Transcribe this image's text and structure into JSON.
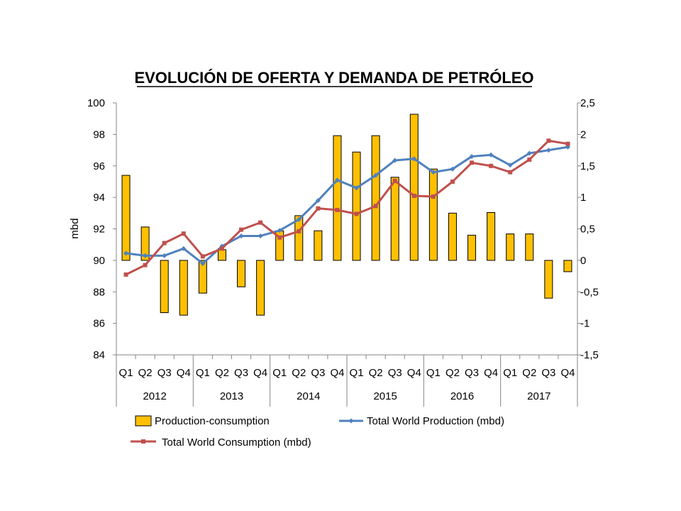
{
  "chart_data": {
    "type": "bar+line",
    "title": "EVOLUCIÓN DE OFERTA Y DEMANDA DE PETRÓLEO",
    "ylabel_left": "mbd",
    "ylim_left": [
      84,
      100
    ],
    "yticks_left": [
      "84",
      "86",
      "88",
      "90",
      "92",
      "94",
      "96",
      "98",
      "100"
    ],
    "ylim_right": [
      -1.5,
      2.5
    ],
    "yticks_right": [
      "-1,5",
      "-1",
      "-0,5",
      "0",
      "0,5",
      "1",
      "1,5",
      "2",
      "2,5"
    ],
    "quarters": [
      "Q1",
      "Q2",
      "Q3",
      "Q4",
      "Q1",
      "Q2",
      "Q3",
      "Q4",
      "Q1",
      "Q2",
      "Q3",
      "Q4",
      "Q1",
      "Q2",
      "Q3",
      "Q4",
      "Q1",
      "Q2",
      "Q3",
      "Q4",
      "Q1",
      "Q2",
      "Q3",
      "Q4"
    ],
    "years": [
      "2012",
      "2013",
      "2014",
      "2015",
      "2016",
      "2017"
    ],
    "series": [
      {
        "name": "Production-consumption",
        "type": "bar",
        "axis": "right",
        "color": "#FFC000",
        "values": [
          1.35,
          0.53,
          -0.83,
          -0.87,
          -0.52,
          0.17,
          -0.42,
          -0.87,
          0.47,
          0.71,
          0.47,
          1.98,
          1.72,
          1.98,
          1.32,
          2.32,
          1.45,
          0.75,
          0.4,
          0.76,
          0.42,
          0.42,
          -0.6,
          -0.18
        ]
      },
      {
        "name": "Total World Production (mbd)",
        "type": "line",
        "axis": "left",
        "color": "#4F81BD",
        "values": [
          90.45,
          90.3,
          90.3,
          90.75,
          89.8,
          90.9,
          91.55,
          91.55,
          91.9,
          92.6,
          93.8,
          95.1,
          94.6,
          95.4,
          96.35,
          96.45,
          95.6,
          95.8,
          96.6,
          96.7,
          96.05,
          96.8,
          97.0,
          97.2
        ]
      },
      {
        "name": "Total World Consumption (mbd)",
        "type": "line",
        "axis": "left",
        "color": "#C0504D",
        "values": [
          89.1,
          89.7,
          91.1,
          91.7,
          90.25,
          90.75,
          91.95,
          92.4,
          91.45,
          91.85,
          93.3,
          93.2,
          92.95,
          93.45,
          95.05,
          94.1,
          94.05,
          95.0,
          96.2,
          96.0,
          95.6,
          96.4,
          97.6,
          97.4
        ]
      }
    ],
    "legend_position": "bottom",
    "grid": false
  }
}
